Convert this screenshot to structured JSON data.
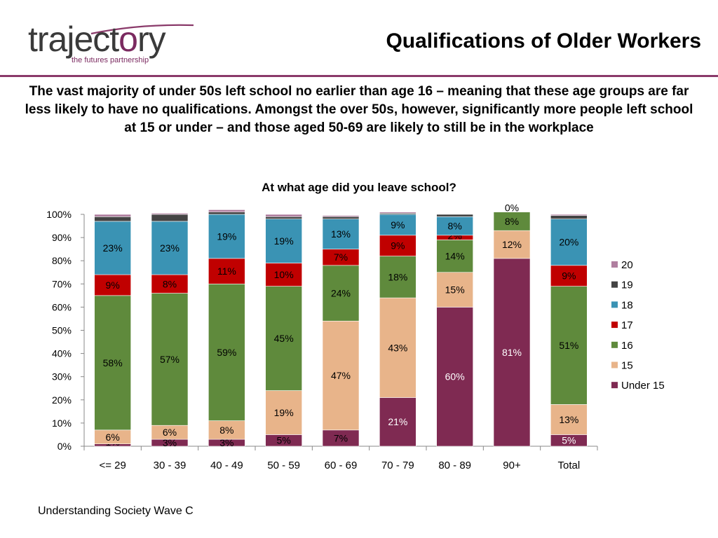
{
  "logo": {
    "word_before": "traject",
    "word_dot": "o",
    "word_after": "ry",
    "tagline": "the futures partnership"
  },
  "header": {
    "title": "Qualifications of Older Workers",
    "subtitle": "The vast majority of under 50s left school no earlier than age 16 – meaning that these age groups are far less likely to have no qualifications. Amongst the over 50s, however, significantly more people left school at 15 or under – and those aged 50-69 are likely to still be in the workplace"
  },
  "footer": {
    "source": "Understanding Society Wave C"
  },
  "colors": {
    "accent": "#8a3a6a"
  },
  "chart_data": {
    "type": "bar",
    "stacked": true,
    "title": "At what age did you leave school?",
    "xlabel": "",
    "ylabel": "",
    "ylim": [
      0,
      100
    ],
    "yticks": [
      "0%",
      "10%",
      "20%",
      "30%",
      "40%",
      "50%",
      "60%",
      "70%",
      "80%",
      "90%",
      "100%"
    ],
    "grid": false,
    "legend_position": "right",
    "categories": [
      "<= 29",
      "30 - 39",
      "40 - 49",
      "50 - 59",
      "60 - 69",
      "70 - 79",
      "80 - 89",
      "90+",
      "Total"
    ],
    "series": [
      {
        "name": "Under 15",
        "color": "#7f2a52",
        "values": [
          1,
          3,
          3,
          5,
          7,
          21,
          60,
          81,
          5
        ],
        "labels": [
          "1%",
          "3%",
          "3%",
          "5%",
          "7%",
          "21%",
          "60%",
          "81%",
          "5%"
        ]
      },
      {
        "name": "15",
        "color": "#e8b48a",
        "values": [
          6,
          6,
          8,
          19,
          47,
          43,
          15,
          12,
          13
        ],
        "labels": [
          "6%",
          "6%",
          "8%",
          "19%",
          "47%",
          "43%",
          "15%",
          "12%",
          "13%"
        ]
      },
      {
        "name": "16",
        "color": "#5f8a3c",
        "values": [
          58,
          57,
          59,
          45,
          24,
          18,
          14,
          8,
          51
        ],
        "labels": [
          "58%",
          "57%",
          "59%",
          "45%",
          "24%",
          "18%",
          "14%",
          "8%",
          "51%"
        ]
      },
      {
        "name": "17",
        "color": "#c00000",
        "values": [
          9,
          8,
          11,
          10,
          7,
          9,
          2,
          0,
          9
        ],
        "labels": [
          "9%",
          "8%",
          "11%",
          "10%",
          "7%",
          "9%",
          "2%",
          "0%",
          "9%"
        ]
      },
      {
        "name": "18",
        "color": "#3a93b4",
        "values": [
          23,
          23,
          19,
          19,
          13,
          9,
          8,
          0,
          20
        ],
        "labels": [
          "23%",
          "23%",
          "19%",
          "19%",
          "13%",
          "9%",
          "8%",
          "",
          "20%"
        ]
      },
      {
        "name": "19",
        "color": "#444444",
        "values": [
          2,
          3,
          1,
          1,
          1,
          0.5,
          1,
          0,
          1.5
        ],
        "labels": [
          "",
          "",
          "",
          "",
          "",
          "",
          "",
          "",
          ""
        ]
      },
      {
        "name": "20",
        "color": "#b07fa0",
        "values": [
          1,
          0.5,
          1,
          1,
          0.5,
          0.5,
          0,
          0,
          0.5
        ],
        "labels": [
          "",
          "",
          "",
          "",
          "",
          "",
          "",
          "",
          ""
        ]
      }
    ]
  }
}
